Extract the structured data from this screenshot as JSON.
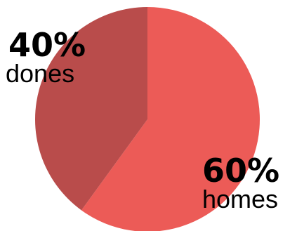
{
  "chart_data": {
    "type": "pie",
    "slices": [
      {
        "label": "homes",
        "value": 60,
        "display": "60%",
        "color": "#ec5b57"
      },
      {
        "label": "dones",
        "value": 40,
        "display": "40%",
        "color": "#b94c4b"
      }
    ]
  }
}
